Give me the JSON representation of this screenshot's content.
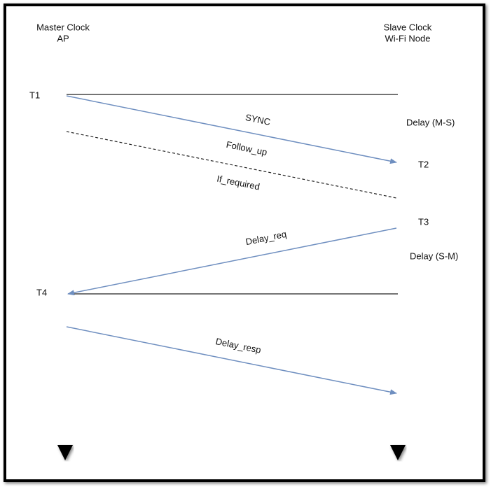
{
  "nodes": [
    {
      "label_lines": [
        "Master Clock",
        "AP"
      ]
    },
    {
      "label_lines": [
        "Slave Clock",
        "Wi-Fi Node"
      ]
    }
  ],
  "timestamps": [
    "T1",
    "T2",
    "T3",
    "T4"
  ],
  "messages": [
    "SYNC",
    "Follow_up",
    "If_required",
    "Delay_req",
    "Delay_resp"
  ],
  "delays": [
    "Delay (M-S)",
    "Delay (S-M)"
  ]
}
